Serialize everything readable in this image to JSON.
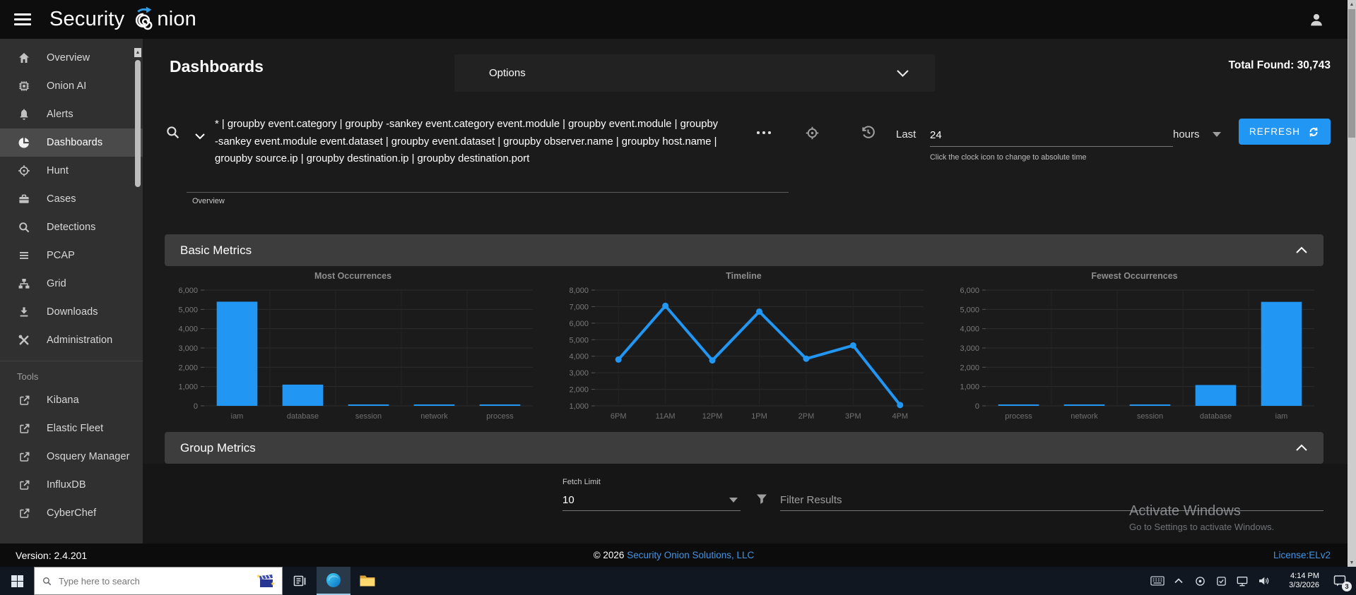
{
  "colors": {
    "accent": "#2196f3",
    "link": "#4394e5"
  },
  "topbar": {
    "logo_part1": "Security",
    "logo_part2": "nion"
  },
  "sidebar": {
    "items": [
      {
        "label": "Overview",
        "icon": "home-icon"
      },
      {
        "label": "Onion AI",
        "icon": "chip-icon"
      },
      {
        "label": "Alerts",
        "icon": "bell-icon"
      },
      {
        "label": "Dashboards",
        "icon": "pie-chart-icon",
        "selected": true
      },
      {
        "label": "Hunt",
        "icon": "crosshair-icon"
      },
      {
        "label": "Cases",
        "icon": "briefcase-icon"
      },
      {
        "label": "Detections",
        "icon": "magnifier-icon"
      },
      {
        "label": "PCAP",
        "icon": "lines-icon"
      },
      {
        "label": "Grid",
        "icon": "sitemap-icon"
      },
      {
        "label": "Downloads",
        "icon": "download-icon"
      },
      {
        "label": "Administration",
        "icon": "tools-icon"
      }
    ],
    "tools_header": "Tools",
    "tools": [
      {
        "label": "Kibana"
      },
      {
        "label": "Elastic Fleet"
      },
      {
        "label": "Osquery Manager"
      },
      {
        "label": "InfluxDB"
      },
      {
        "label": "CyberChef"
      }
    ]
  },
  "header": {
    "page_title": "Dashboards",
    "options_label": "Options",
    "total_found": "Total Found: 30,743"
  },
  "search": {
    "query": "* | groupby event.category | groupby -sankey event.category event.module | groupby event.module | groupby -sankey event.module event.dataset | groupby event.dataset | groupby observer.name | groupby host.name | groupby source.ip | groupby destination.ip | groupby destination.port",
    "view_label": "Overview"
  },
  "timebar": {
    "last_label": "Last",
    "duration": "24",
    "hint": "Click the clock icon to change to absolute time",
    "units": "hours",
    "refresh_label": "REFRESH"
  },
  "sections": {
    "basic": "Basic Metrics",
    "group": "Group Metrics"
  },
  "chart_data": [
    {
      "type": "bar",
      "title": "Most Occurrences",
      "categories": [
        "iam",
        "database",
        "session",
        "network",
        "process"
      ],
      "values": [
        5400,
        1100,
        60,
        55,
        25
      ],
      "ylim": [
        0,
        6000
      ],
      "ytick": 1000,
      "xlabel": "",
      "ylabel": "",
      "grid": true,
      "legend": "none"
    },
    {
      "type": "line",
      "title": "Timeline",
      "categories": [
        "6PM",
        "11AM",
        "12PM",
        "1PM",
        "2PM",
        "3PM",
        "4PM"
      ],
      "values": [
        3800,
        7050,
        3750,
        6700,
        3850,
        4650,
        1050
      ],
      "ylim": [
        1000,
        8000
      ],
      "ytick": 1000,
      "xlabel": "",
      "ylabel": "",
      "grid": true,
      "legend": "none"
    },
    {
      "type": "bar",
      "title": "Fewest Occurrences",
      "categories": [
        "process",
        "network",
        "session",
        "database",
        "iam"
      ],
      "values": [
        25,
        55,
        60,
        1080,
        5390
      ],
      "ylim": [
        0,
        6000
      ],
      "ytick": 1000,
      "xlabel": "",
      "ylabel": "",
      "grid": true,
      "legend": "none"
    }
  ],
  "group_metrics": {
    "fetch_limit_label": "Fetch Limit",
    "fetch_limit_value": "10",
    "filter_placeholder": "Filter Results"
  },
  "watermark": {
    "line1": "Activate Windows",
    "line2": "Go to Settings to activate Windows."
  },
  "footer": {
    "version": "Version: 2.4.201",
    "copyright_prefix": "© 2026 ",
    "company_link": "Security Onion Solutions, LLC",
    "license": "License:ELv2"
  },
  "taskbar": {
    "search_placeholder": "Type here to search",
    "clock_time": "4:14 PM",
    "clock_date": "3/3/2026",
    "notification_count": "3"
  }
}
